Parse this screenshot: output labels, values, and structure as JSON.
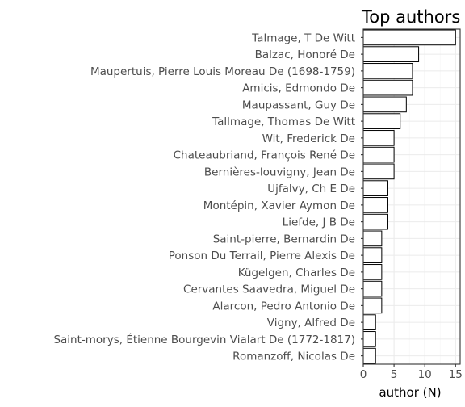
{
  "chart_data": {
    "type": "bar",
    "orientation": "horizontal",
    "title": "Top authors",
    "xlabel": "author (N)",
    "ylabel": "",
    "xlim": [
      0,
      15.75
    ],
    "xticks": [
      0,
      5,
      10,
      15
    ],
    "grid": true,
    "categories": [
      "Talmage, T De Witt",
      "Balzac, Honoré De",
      "Maupertuis, Pierre Louis Moreau De (1698-1759)",
      "Amicis, Edmondo De",
      "Maupassant, Guy De",
      "Tallmage, Thomas De Witt",
      "Wit, Frederick De",
      "Chateaubriand, François René De",
      "Bernières-louvigny, Jean De",
      "Ujfalvy, Ch E De",
      "Montépin, Xavier Aymon De",
      "Liefde, J B De",
      "Saint-pierre, Bernardin De",
      "Ponson Du Terrail, Pierre Alexis De",
      "Kügelgen, Charles De",
      "Cervantes Saavedra, Miguel De",
      "Alarcon, Pedro Antonio De",
      "Vigny, Alfred De",
      "Saint-morys, Étienne Bourgevin Vialart De (1772-1817)",
      "Romanzoff, Nicolas De"
    ],
    "values": [
      15,
      9,
      8,
      8,
      7,
      6,
      5,
      5,
      5,
      4,
      4,
      4,
      3,
      3,
      3,
      3,
      3,
      2,
      2,
      2
    ]
  }
}
